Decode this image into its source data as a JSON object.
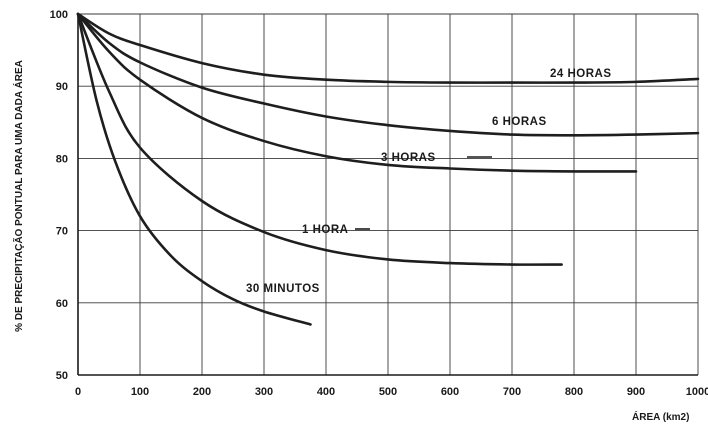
{
  "chart_data": {
    "type": "line",
    "title": "",
    "xlabel": "ÁREA (km2)",
    "ylabel": "% DE PRECIPITAÇÃO PONTUAL PARA UMA DADA ÁREA",
    "xlim": [
      0,
      1000
    ],
    "ylim": [
      50,
      100
    ],
    "x_ticks": [
      "0",
      "100",
      "200",
      "300",
      "400",
      "500",
      "600",
      "700",
      "800",
      "900",
      "1000"
    ],
    "y_ticks": [
      "50",
      "60",
      "70",
      "80",
      "90",
      "100"
    ],
    "grid": true,
    "series": [
      {
        "name": "24 HORAS",
        "points": [
          [
            0,
            100
          ],
          [
            50,
            97.3
          ],
          [
            100,
            95.7
          ],
          [
            200,
            93.2
          ],
          [
            300,
            91.6
          ],
          [
            400,
            90.9
          ],
          [
            500,
            90.6
          ],
          [
            600,
            90.5
          ],
          [
            700,
            90.5
          ],
          [
            800,
            90.5
          ],
          [
            900,
            90.6
          ],
          [
            1000,
            91.0
          ]
        ]
      },
      {
        "name": "6 HORAS",
        "points": [
          [
            0,
            100
          ],
          [
            50,
            96.0
          ],
          [
            100,
            93.3
          ],
          [
            200,
            89.8
          ],
          [
            300,
            87.6
          ],
          [
            400,
            85.8
          ],
          [
            500,
            84.6
          ],
          [
            600,
            83.8
          ],
          [
            700,
            83.3
          ],
          [
            800,
            83.2
          ],
          [
            900,
            83.3
          ],
          [
            1000,
            83.5
          ]
        ]
      },
      {
        "name": "3 HORAS",
        "points": [
          [
            0,
            100
          ],
          [
            50,
            94.8
          ],
          [
            100,
            90.9
          ],
          [
            200,
            85.6
          ],
          [
            300,
            82.4
          ],
          [
            400,
            80.3
          ],
          [
            500,
            79.1
          ],
          [
            600,
            78.6
          ],
          [
            700,
            78.3
          ],
          [
            800,
            78.2
          ],
          [
            900,
            78.2
          ]
        ]
      },
      {
        "name": "1 HORA",
        "points": [
          [
            0,
            100
          ],
          [
            50,
            89.3
          ],
          [
            100,
            81.5
          ],
          [
            200,
            74.1
          ],
          [
            300,
            69.8
          ],
          [
            400,
            67.3
          ],
          [
            500,
            66.0
          ],
          [
            600,
            65.5
          ],
          [
            700,
            65.3
          ],
          [
            780,
            65.3
          ]
        ]
      },
      {
        "name": "30 MINUTOS",
        "points": [
          [
            0,
            100
          ],
          [
            30,
            88.0
          ],
          [
            60,
            79.6
          ],
          [
            100,
            72.0
          ],
          [
            150,
            66.5
          ],
          [
            200,
            63.0
          ],
          [
            250,
            60.5
          ],
          [
            300,
            58.8
          ],
          [
            375,
            57.0
          ]
        ]
      }
    ]
  }
}
